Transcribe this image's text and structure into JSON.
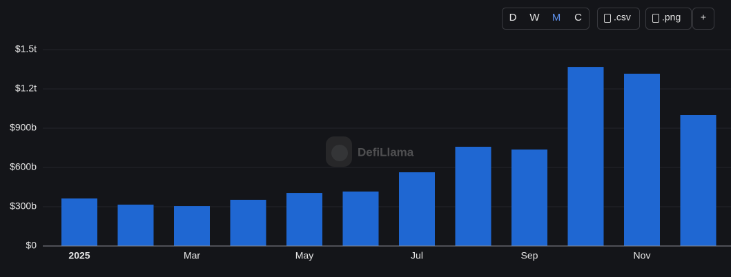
{
  "chart_data": {
    "type": "bar",
    "categories": [
      "2025",
      null,
      "Mar",
      null,
      "May",
      null,
      "Jul",
      null,
      "Sep",
      null,
      "Nov",
      null
    ],
    "values": [
      363,
      316,
      305,
      353,
      405,
      416,
      563,
      758,
      737,
      1368,
      1316,
      1000
    ],
    "color": "#1f67d2",
    "ylim": [
      0,
      1500
    ],
    "yticks": [
      {
        "value": 0,
        "label": "$0"
      },
      {
        "value": 300,
        "label": "$300b"
      },
      {
        "value": 600,
        "label": "$600b"
      },
      {
        "value": 900,
        "label": "$900b"
      },
      {
        "value": 1200,
        "label": "$1.2t"
      },
      {
        "value": 1500,
        "label": "$1.5t"
      }
    ],
    "grid": true
  },
  "controls": {
    "intervals": [
      "D",
      "W",
      "M",
      "C"
    ],
    "active_interval": "M",
    "buttons": [
      ".csv",
      ".png",
      "+"
    ]
  },
  "watermark": "DefiLlama"
}
